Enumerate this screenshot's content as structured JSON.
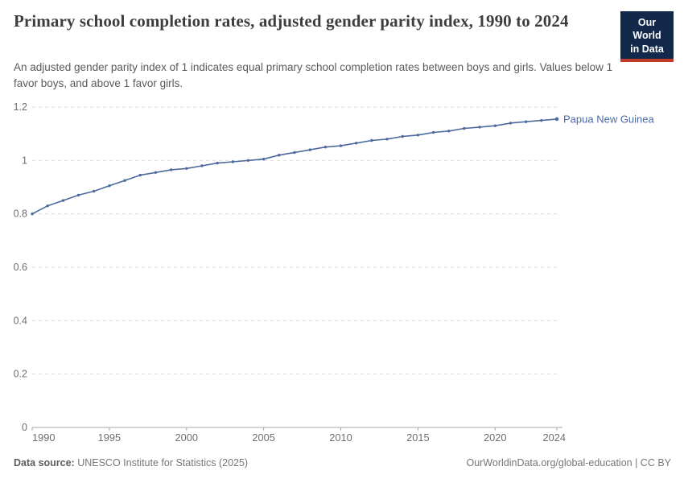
{
  "header": {
    "title": "Primary school completion rates, adjusted gender parity index, 1990 to 2024",
    "subtitle": "An adjusted gender parity index of 1 indicates equal primary school completion rates between boys and girls. Values below 1 favor boys, and above 1 favor girls.",
    "logo": {
      "line1": "Our World",
      "line2": "in Data",
      "bg_color": "#12294b",
      "accent_color": "#c0392b"
    }
  },
  "chart_data": {
    "type": "line",
    "title": "Primary school completion rates, adjusted gender parity index, 1990 to 2024",
    "xlim": [
      1990,
      2024
    ],
    "ylim": [
      0,
      1.2
    ],
    "grid": "horizontal-dashed",
    "legend_position": "end-of-line-label",
    "x_ticks": [
      1990,
      1995,
      2000,
      2005,
      2010,
      2015,
      2020,
      2024
    ],
    "x_tick_labels": [
      "1990",
      "1995",
      "2000",
      "2005",
      "2010",
      "2015",
      "2020",
      "2024"
    ],
    "y_ticks": [
      0,
      0.2,
      0.4,
      0.6,
      0.8,
      1,
      1.2
    ],
    "y_tick_labels": [
      "0",
      "0.2",
      "0.4",
      "0.6",
      "0.8",
      "1",
      "1.2"
    ],
    "series": [
      {
        "name": "Papua New Guinea",
        "color": "#4c6a9c",
        "label_color": "#4a69a8",
        "x": [
          1990,
          1991,
          1992,
          1993,
          1994,
          1995,
          1996,
          1997,
          1998,
          1999,
          2000,
          2001,
          2002,
          2003,
          2004,
          2005,
          2006,
          2007,
          2008,
          2009,
          2010,
          2011,
          2012,
          2013,
          2014,
          2015,
          2016,
          2017,
          2018,
          2019,
          2020,
          2021,
          2022,
          2023,
          2024
        ],
        "values": [
          0.8,
          0.83,
          0.85,
          0.87,
          0.885,
          0.905,
          0.925,
          0.945,
          0.955,
          0.965,
          0.97,
          0.98,
          0.99,
          0.995,
          1.0,
          1.005,
          1.02,
          1.03,
          1.04,
          1.05,
          1.055,
          1.065,
          1.075,
          1.08,
          1.09,
          1.095,
          1.105,
          1.11,
          1.12,
          1.125,
          1.13,
          1.14,
          1.145,
          1.15,
          1.155
        ]
      }
    ],
    "colors": {
      "grid": "#dedede",
      "axis": "#a8a8a8",
      "tick_text": "#6e6e6e"
    }
  },
  "footer": {
    "source_label": "Data source:",
    "source_text": " UNESCO Institute for Statistics (2025)",
    "right_text": "OurWorldinData.org/global-education | CC BY"
  }
}
